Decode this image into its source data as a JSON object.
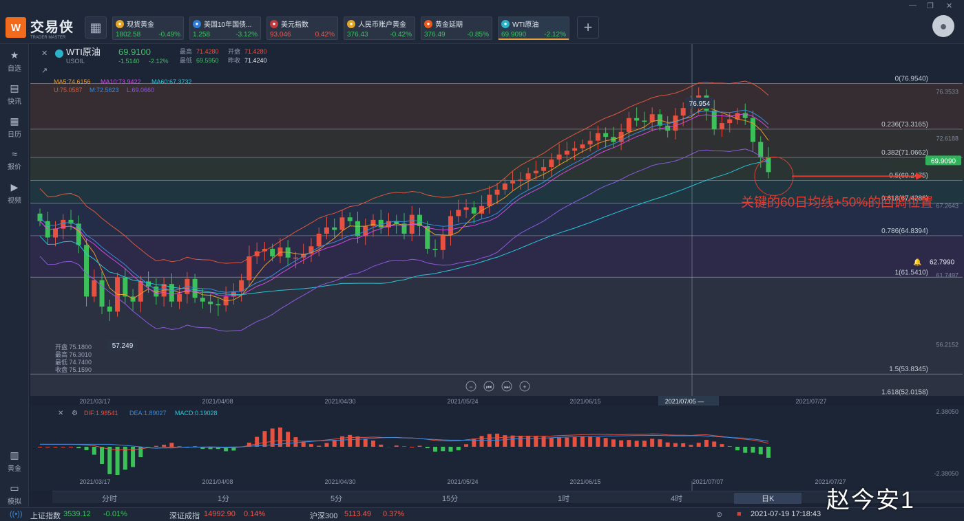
{
  "app": {
    "logo_mark": "W",
    "logo_text": "交易侠",
    "logo_sub": "TRADER MASTER"
  },
  "tickers": [
    {
      "name": "现货黄金",
      "price": "1802.58",
      "change": "-0.49%",
      "icon_color": "#e3a526"
    },
    {
      "name": "美国10年国债...",
      "price": "1.258",
      "change": "-3.12%",
      "icon_color": "#2f7bd8"
    },
    {
      "name": "美元指数",
      "price": "93.046",
      "change": "0.42%",
      "icon_color": "#c0393b"
    },
    {
      "name": "人民币账户黄金",
      "price": "376.43",
      "change": "-0.42%",
      "icon_color": "#e3a526"
    },
    {
      "name": "黄金延期",
      "price": "376.49",
      "change": "-0.85%",
      "icon_color": "#e85a1f"
    },
    {
      "name": "WTI原油",
      "price": "69.9090",
      "change": "-2.12%",
      "icon_color": "#2ab3c9"
    }
  ],
  "sidebar": [
    {
      "label": "自选",
      "icon": "star-icon"
    },
    {
      "label": "快讯",
      "icon": "news-icon"
    },
    {
      "label": "日历",
      "icon": "calendar-icon"
    },
    {
      "label": "报价",
      "icon": "quote-icon"
    },
    {
      "label": "视频",
      "icon": "video-icon"
    },
    {
      "label": "黄金",
      "icon": "gold-icon"
    },
    {
      "label": "模拟",
      "icon": "wallet-icon"
    }
  ],
  "symbol": {
    "name": "WTI原油",
    "code": "USOIL",
    "price": "69.9100",
    "chg": "-1.5140",
    "pct": "-2.12%",
    "high_label": "最高",
    "high": "71.4280",
    "open_label": "开盘",
    "open": "71.4280",
    "low_label": "最低",
    "low": "69.5950",
    "prev_label": "昨收",
    "prev": "71.4240"
  },
  "ma": {
    "ma5": "MA5:74.6156",
    "ma10": "MA10:73.9422",
    "ma60": "MA60:67.3732",
    "u": "U:75.0587",
    "m": "M:72.5623",
    "l": "L:69.0660"
  },
  "ohlc_box": {
    "open": "开盘 75.1800",
    "high": "最高 76.3010",
    "low": "最低 74.7400",
    "close": "收盘 75.1590"
  },
  "price_axis": [
    "76.3533",
    "72.6188",
    "67.2643",
    "61.7497",
    "56.2152"
  ],
  "fib": [
    {
      "label": "0(76.9540)",
      "value": 76.954
    },
    {
      "label": "0.236(73.3165)",
      "value": 73.3165
    },
    {
      "label": "0.382(71.0662)",
      "value": 71.0662
    },
    {
      "label": "0.5(69.2475)",
      "value": 69.2475
    },
    {
      "label": "0.618(67.4288)",
      "value": 67.4288
    },
    {
      "label": "0.786(64.8394)",
      "value": 64.8394
    },
    {
      "label": "1(61.5410)",
      "value": 61.541
    },
    {
      "label": "1.5(53.8345)",
      "value": 53.8345
    },
    {
      "label": "1.618(52.0158)",
      "value": 52.0158
    }
  ],
  "annotation": "关键的60日均线+50%的回调位置",
  "current_price_tag": "69.9090",
  "alert_price": "62.7990",
  "peak_label": "76.954",
  "trough_label": "57.249",
  "date_axis": [
    "2021/03/17",
    "2021/04/08",
    "2021/04/30",
    "2021/05/24",
    "2021/06/15",
    "2021/07/05 —",
    "2021/07/27"
  ],
  "macd": {
    "dif": "DIF:1.98541",
    "dea": "DEA:1.89027",
    "macd": "MACD:0.19028",
    "top": "2.38050",
    "bottom": "-2.38050",
    "dates": [
      "2021/03/17",
      "2021/04/08",
      "2021/04/30",
      "2021/05/24",
      "2021/06/15",
      "2021/07/07",
      "2021/07/27"
    ]
  },
  "periods": [
    "分时",
    "1分",
    "5分",
    "15分",
    "1时",
    "4时",
    "日K"
  ],
  "statusbar": [
    {
      "name": "上证指数",
      "price": "3539.12",
      "chg": "-0.01%"
    },
    {
      "name": "深证成指",
      "price": "14992.90",
      "chg": "0.14%"
    },
    {
      "name": "沪深300",
      "price": "5113.49",
      "chg": "0.37%"
    }
  ],
  "datetime": "2021-07-19 17:18:43",
  "watermark": "赵今安1",
  "chart_data": {
    "type": "candlestick",
    "title": "WTI原油",
    "ylim": [
      51,
      79
    ],
    "closes": [
      66.0,
      64.7,
      65.4,
      66.1,
      65.8,
      64.1,
      60.0,
      61.3,
      59.2,
      58.8,
      61.5,
      60.0,
      59.6,
      61.2,
      60.8,
      60.0,
      61.0,
      59.6,
      60.2,
      61.4,
      59.9,
      59.6,
      59.4,
      59.3,
      60.0,
      60.4,
      61.3,
      63.2,
      63.6,
      63.8,
      63.2,
      63.9,
      63.1,
      63.1,
      63.4,
      64.0,
      65.0,
      65.5,
      65.3,
      66.3,
      66.0,
      64.8,
      65.6,
      66.1,
      65.5,
      66.0,
      65.8,
      65.0,
      66.5,
      65.6,
      63.8,
      63.7,
      64.9,
      66.4,
      66.9,
      67.1,
      66.6,
      67.2,
      68.1,
      68.5,
      69.0,
      69.2,
      69.3,
      69.8,
      70.0,
      70.3,
      70.9,
      71.3,
      71.6,
      71.8,
      72.1,
      72.4,
      73.0,
      72.7,
      72.3,
      73.1,
      74.2,
      74.0,
      73.9,
      74.5,
      73.6,
      73.2,
      74.4,
      75.0,
      75.2,
      76.0,
      74.8,
      73.3,
      73.8,
      74.1,
      74.6,
      74.2,
      72.3,
      71.1,
      69.9
    ]
  }
}
